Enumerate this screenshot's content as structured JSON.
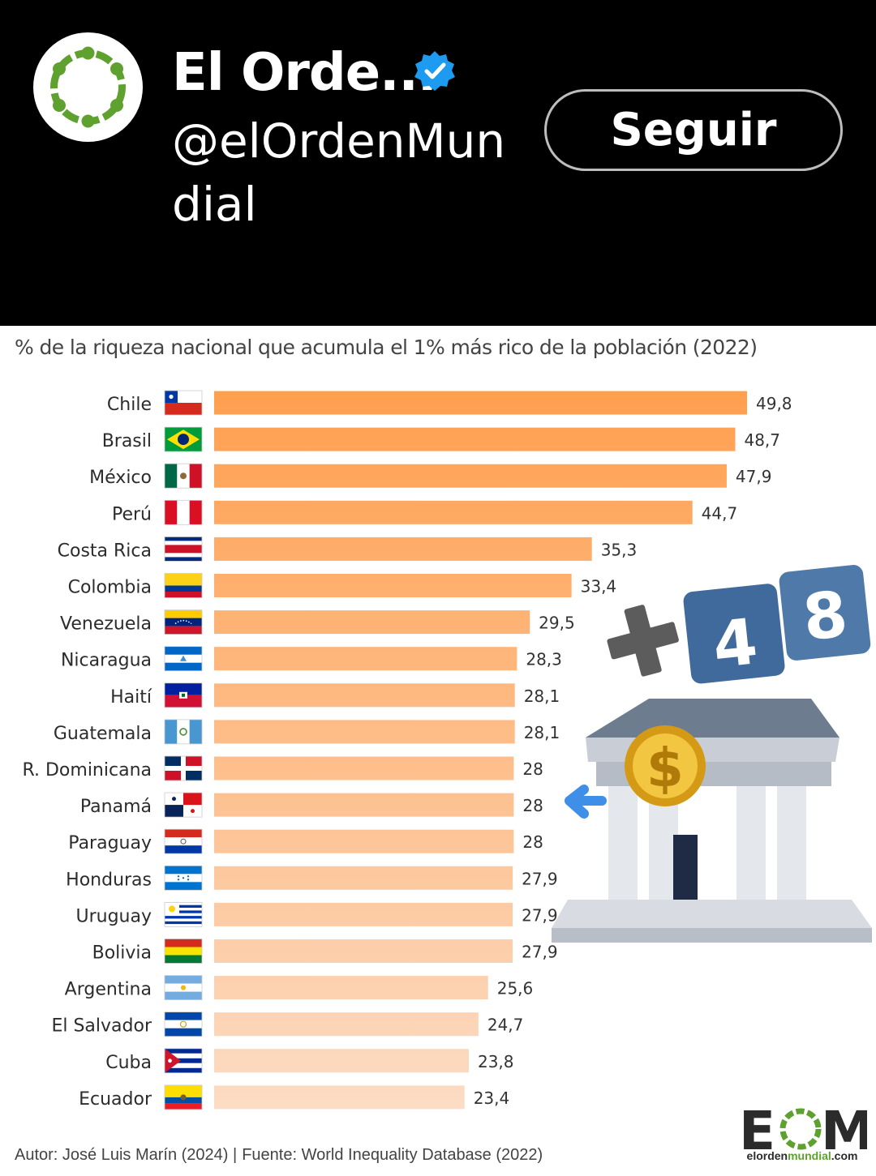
{
  "account": {
    "name": "El Orde...",
    "handle": "@elOrdenMundial",
    "follow_label": "Seguir",
    "verified_color": "#1d9bf0",
    "logo_color": "#5fa12f"
  },
  "chart_data": {
    "type": "bar",
    "orientation": "horizontal",
    "title": "% de la riqueza nacional que acumula el 1% más rico de la población (2022)",
    "categories": [
      "Chile",
      "Brasil",
      "México",
      "Perú",
      "Costa Rica",
      "Colombia",
      "Venezuela",
      "Nicaragua",
      "Haití",
      "Guatemala",
      "R. Dominicana",
      "Panamá",
      "Paraguay",
      "Honduras",
      "Uruguay",
      "Bolivia",
      "Argentina",
      "El Salvador",
      "Cuba",
      "Ecuador"
    ],
    "values": [
      49.8,
      48.7,
      47.9,
      44.7,
      35.3,
      33.4,
      29.5,
      28.3,
      28.1,
      28.1,
      28,
      28,
      28,
      27.9,
      27.9,
      27.9,
      25.6,
      24.7,
      23.8,
      23.4
    ],
    "value_labels": [
      "49,8",
      "48,7",
      "47,9",
      "44,7",
      "35,3",
      "33,4",
      "29,5",
      "28,3",
      "28,1",
      "28,1",
      "28",
      "28",
      "28",
      "27,9",
      "27,9",
      "27,9",
      "25,6",
      "24,7",
      "23,8",
      "23,4"
    ],
    "flags": [
      "chile-flag-icon",
      "brazil-flag-icon",
      "mexico-flag-icon",
      "peru-flag-icon",
      "costa-rica-flag-icon",
      "colombia-flag-icon",
      "venezuela-flag-icon",
      "nicaragua-flag-icon",
      "haiti-flag-icon",
      "guatemala-flag-icon",
      "dominican-republic-flag-icon",
      "panama-flag-icon",
      "paraguay-flag-icon",
      "honduras-flag-icon",
      "uruguay-flag-icon",
      "bolivia-flag-icon",
      "argentina-flag-icon",
      "el-salvador-flag-icon",
      "cuba-flag-icon",
      "ecuador-flag-icon"
    ],
    "bar_color_start": "#ff9f4f",
    "bar_color_end": "#fcdcc4",
    "xlim": [
      0,
      50
    ],
    "grid": false,
    "legend": "none"
  },
  "overlay": {
    "digits": [
      "4",
      "8"
    ],
    "icon": "bank-building-dollar-icon"
  },
  "footer": {
    "author": "Autor: José Luis Marín  (2024) |",
    "source": "Fuente: World Inequality Database (2022)",
    "logo_text": "EOM",
    "logo_url_prefix": "elorden",
    "logo_url_mid": "mundial",
    "logo_url_suffix": ".com"
  }
}
